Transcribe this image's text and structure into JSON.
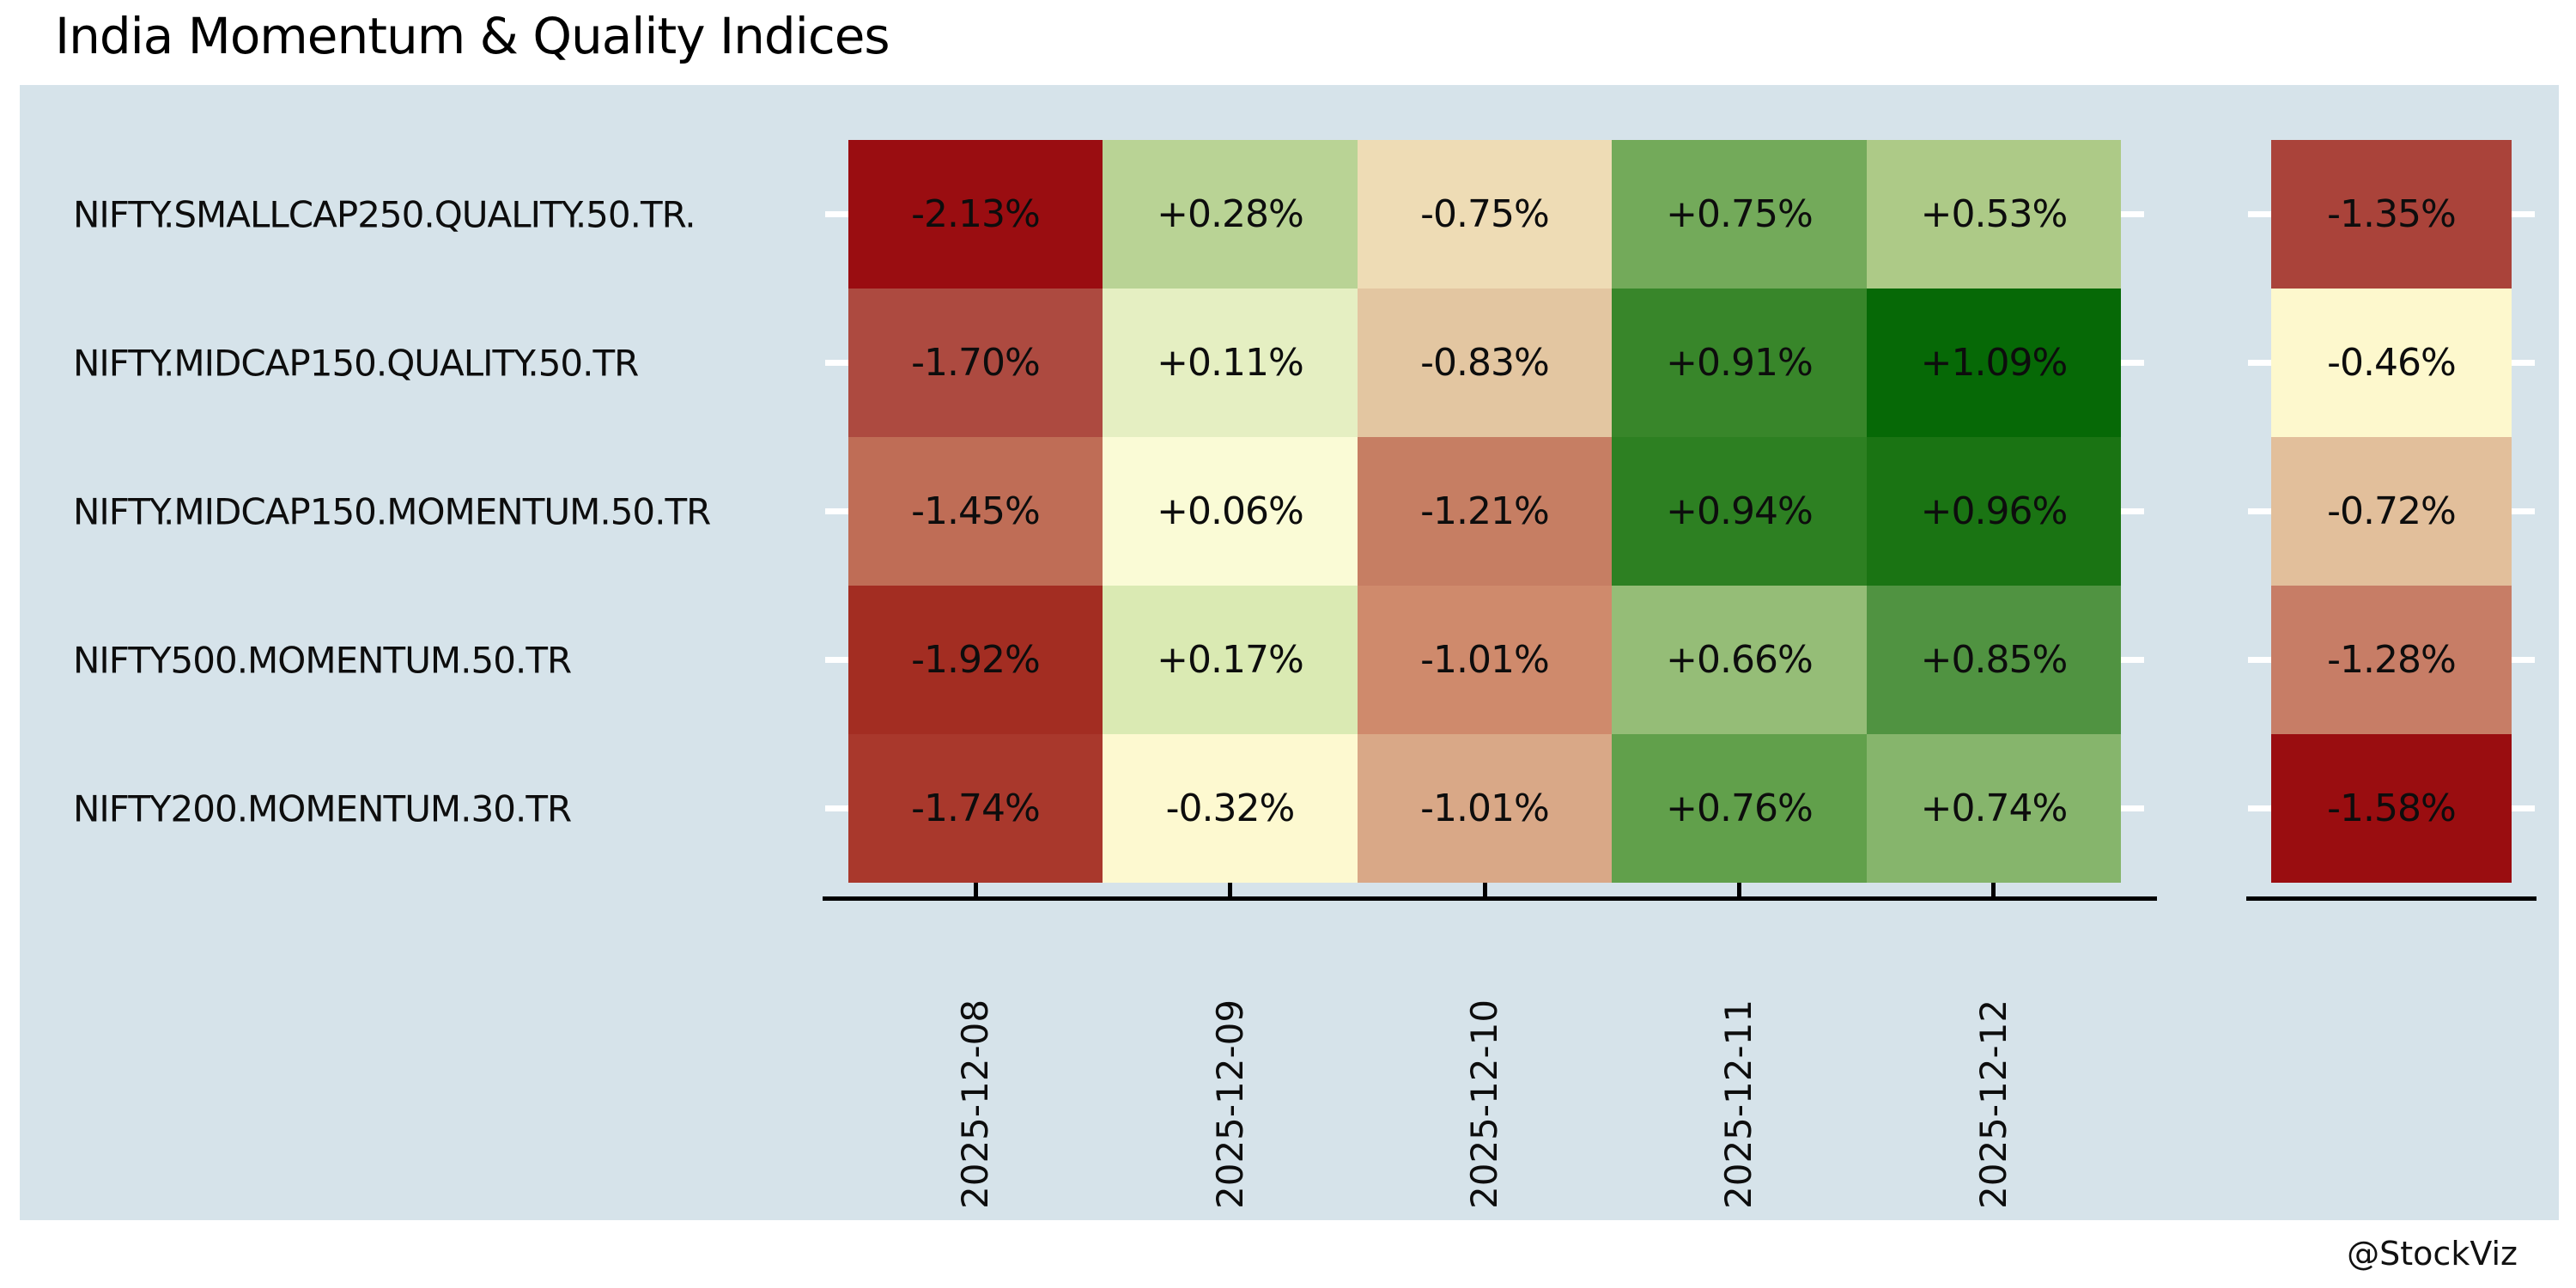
{
  "title": "India Momentum & Quality Indices",
  "watermark": "@StockViz",
  "colors": {
    "page_bg": "#ffffff",
    "panel_bg": "#d6e3ea",
    "axis": "#000000",
    "y_tick": "#ffffff",
    "text": "#0d0d0d"
  },
  "chart_data": {
    "type": "heatmap",
    "title": "India Momentum & Quality Indices",
    "colormap": "RdYlGn",
    "legend_position": "none",
    "rows": [
      "NIFTY.SMALLCAP250.QUALITY.50.TR.",
      "NIFTY.MIDCAP150.QUALITY.50.TR",
      "NIFTY.MIDCAP150.MOMENTUM.50.TR",
      "NIFTY500.MOMENTUM.50.TR",
      "NIFTY200.MOMENTUM.30.TR"
    ],
    "columns": [
      "2025-12-08",
      "2025-12-09",
      "2025-12-10",
      "2025-12-11",
      "2025-12-12"
    ],
    "values": [
      [
        -2.13,
        0.28,
        -0.75,
        0.75,
        0.53
      ],
      [
        -1.7,
        0.11,
        -0.83,
        0.91,
        1.09
      ],
      [
        -1.45,
        0.06,
        -1.21,
        0.94,
        0.96
      ],
      [
        -1.92,
        0.17,
        -1.01,
        0.66,
        0.85
      ],
      [
        -1.74,
        -0.32,
        -1.01,
        0.76,
        0.74
      ]
    ],
    "value_labels": [
      [
        "-2.13%",
        "+0.28%",
        "-0.75%",
        "+0.75%",
        "+0.53%"
      ],
      [
        "-1.70%",
        "+0.11%",
        "-0.83%",
        "+0.91%",
        "+1.09%"
      ],
      [
        "-1.45%",
        "+0.06%",
        "-1.21%",
        "+0.94%",
        "+0.96%"
      ],
      [
        "-1.92%",
        "+0.17%",
        "-1.01%",
        "+0.66%",
        "+0.85%"
      ],
      [
        "-1.74%",
        "-0.32%",
        "-1.01%",
        "+0.76%",
        "+0.74%"
      ]
    ],
    "cell_colors": [
      [
        "#9a0d11",
        "#b9d395",
        "#eedcb5",
        "#73aa5a",
        "#adca87"
      ],
      [
        "#ad4a40",
        "#e5efc2",
        "#e3c6a1",
        "#38862a",
        "#066906"
      ],
      [
        "#bf6d56",
        "#fafbd6",
        "#c67e63",
        "#2d8022",
        "#1a7413"
      ],
      [
        "#a32d22",
        "#daeab3",
        "#cf8a6c",
        "#95bd77",
        "#509341"
      ],
      [
        "#a9382c",
        "#fdf9d0",
        "#d9a887",
        "#61a04b",
        "#86b56c"
      ]
    ],
    "summary_values": [
      -1.35,
      -0.46,
      -0.72,
      -1.28,
      -1.58
    ],
    "summary_labels": [
      "-1.35%",
      "-0.46%",
      "-0.72%",
      "-1.28%",
      "-1.58%"
    ],
    "summary_colors": [
      "#aa433a",
      "#fdf8cd",
      "#e2bf9b",
      "#c77d66",
      "#9a0d10"
    ]
  }
}
